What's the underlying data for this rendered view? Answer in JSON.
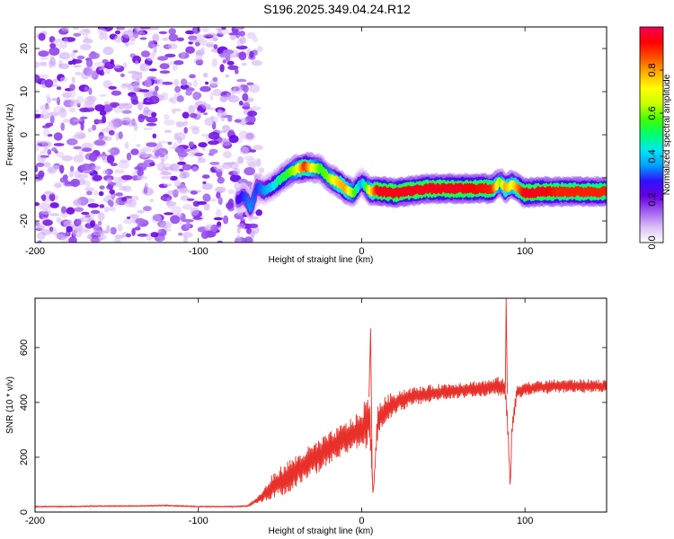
{
  "title": "S196.2025.349.04.24.R12",
  "chart_data": [
    {
      "type": "heatmap",
      "xlabel": "Height of straight line (km)",
      "ylabel": "Frequency (Hz)",
      "xlim": [
        -200,
        150
      ],
      "ylim": [
        -25,
        25
      ],
      "xticks": [
        -200,
        -100,
        0,
        100
      ],
      "yticks": [
        -20,
        -10,
        0,
        10,
        20
      ],
      "colorbar": {
        "label": "Normalized spectral amplitude",
        "range": [
          0,
          1
        ],
        "ticks": [
          0.0,
          0.2,
          0.4,
          0.6,
          0.8
        ],
        "tick_labels": [
          "0.0",
          "0.2",
          "0.4",
          "0.6",
          "0.8"
        ],
        "colors": [
          "#ffffff",
          "#dcc0f6",
          "#a060f0",
          "#6a00e0",
          "#3010ff",
          "#00a0ff",
          "#00e8f0",
          "#00ff70",
          "#40ff00",
          "#c8ff00",
          "#ffff00",
          "#ffb000",
          "#ff5000",
          "#ff0000",
          "#f0005a"
        ]
      },
      "noise_region_x": [
        -200,
        -63
      ],
      "ridge": {
        "x": [
          -76,
          -72,
          -68,
          -64,
          -60,
          -55,
          -50,
          -45,
          -40,
          -35,
          -30,
          -25,
          -20,
          -15,
          -10,
          -5,
          0,
          5,
          10,
          20,
          30,
          40,
          60,
          80,
          85,
          88,
          92,
          100,
          110,
          120,
          150
        ],
        "y": [
          -15,
          -14,
          -17,
          -12,
          -13,
          -12,
          -10.5,
          -9,
          -8,
          -7.5,
          -7.6,
          -8,
          -10,
          -11,
          -12.5,
          -13.5,
          -11,
          -13,
          -13,
          -13.5,
          -13,
          -12.5,
          -12.5,
          -12.5,
          -11,
          -12.5,
          -11.5,
          -13.5,
          -13.2,
          -13.2,
          -13.2
        ],
        "amplitude": [
          0.25,
          0.3,
          0.35,
          0.3,
          0.35,
          0.4,
          0.5,
          0.55,
          0.65,
          0.9,
          0.7,
          0.55,
          0.6,
          0.75,
          0.8,
          0.6,
          0.35,
          0.7,
          0.95,
          0.95,
          0.95,
          0.95,
          0.95,
          0.9,
          0.6,
          0.8,
          0.7,
          0.95,
          0.95,
          0.9,
          0.9
        ]
      }
    },
    {
      "type": "line",
      "xlabel": "Height of straight line (km)",
      "ylabel": "SNR (10 * v/v)",
      "xlim": [
        -200,
        150
      ],
      "ylim": [
        0,
        780
      ],
      "xticks": [
        -200,
        -100,
        0,
        100
      ],
      "yticks": [
        0,
        200,
        400,
        600
      ],
      "series": [
        {
          "name": "SNR",
          "color": "#e8302a",
          "x": [
            -200,
            -180,
            -160,
            -140,
            -120,
            -100,
            -80,
            -70,
            -65,
            -60,
            -55,
            -50,
            -45,
            -40,
            -35,
            -30,
            -25,
            -20,
            -15,
            -10,
            -5,
            0,
            2,
            5,
            7,
            10,
            15,
            20,
            25,
            30,
            40,
            50,
            60,
            70,
            80,
            85,
            88,
            90,
            91,
            92,
            95,
            100,
            110,
            120,
            130,
            140,
            150
          ],
          "y": [
            20,
            20,
            22,
            22,
            24,
            20,
            20,
            22,
            40,
            60,
            90,
            110,
            130,
            150,
            170,
            190,
            210,
            230,
            250,
            270,
            285,
            300,
            320,
            340,
            60,
            340,
            370,
            395,
            410,
            420,
            430,
            440,
            445,
            450,
            455,
            460,
            450,
            250,
            80,
            300,
            440,
            450,
            455,
            460,
            460,
            460,
            460
          ],
          "band": [
            4,
            4,
            4,
            4,
            4,
            4,
            4,
            5,
            15,
            50,
            90,
            110,
            120,
            120,
            120,
            120,
            120,
            120,
            120,
            120,
            130,
            140,
            200,
            140,
            20,
            120,
            110,
            90,
            80,
            70,
            65,
            60,
            60,
            60,
            60,
            75,
            70,
            60,
            10,
            60,
            55,
            50,
            50,
            50,
            50,
            50,
            50
          ]
        }
      ]
    }
  ]
}
